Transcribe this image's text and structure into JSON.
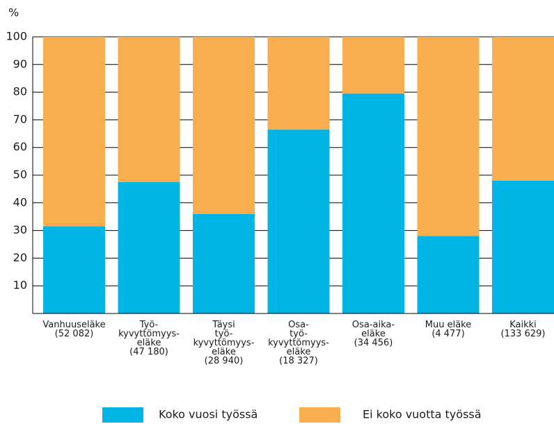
{
  "chart_data": {
    "type": "stacked_bar",
    "y_label": "%",
    "categories": [
      [
        "Vanhuuseläke",
        "(52 082)"
      ],
      [
        "Työ-",
        "kyvyttömyys-",
        "eläke",
        "(47 180)"
      ],
      [
        "Täysi",
        "työ-",
        "kyvyttömyys-",
        "eläke",
        "(28 940)"
      ],
      [
        "Osa-",
        "työ-",
        "kyvyttömyys-",
        "eläke",
        "(18 327)"
      ],
      [
        "Osa-aika-",
        "eläke",
        "(34 456)"
      ],
      [
        "Muu eläke",
        "(4 477)"
      ],
      [
        "Kaikki",
        "(133 629)"
      ]
    ],
    "series": [
      {
        "name": "Koko vuosi työssä",
        "color": "#00b4e6",
        "values": [
          31.5,
          47.5,
          36,
          66.5,
          79.5,
          28,
          48
        ]
      },
      {
        "name": "Ei koko vuotta työssä",
        "color": "#f8ae4f",
        "values": [
          68.5,
          52.5,
          64,
          33.5,
          20.5,
          72,
          52
        ]
      }
    ],
    "ylim": [
      0,
      100
    ],
    "yticks": [
      10,
      20,
      30,
      40,
      50,
      60,
      70,
      80,
      90,
      100
    ],
    "grid": true
  }
}
